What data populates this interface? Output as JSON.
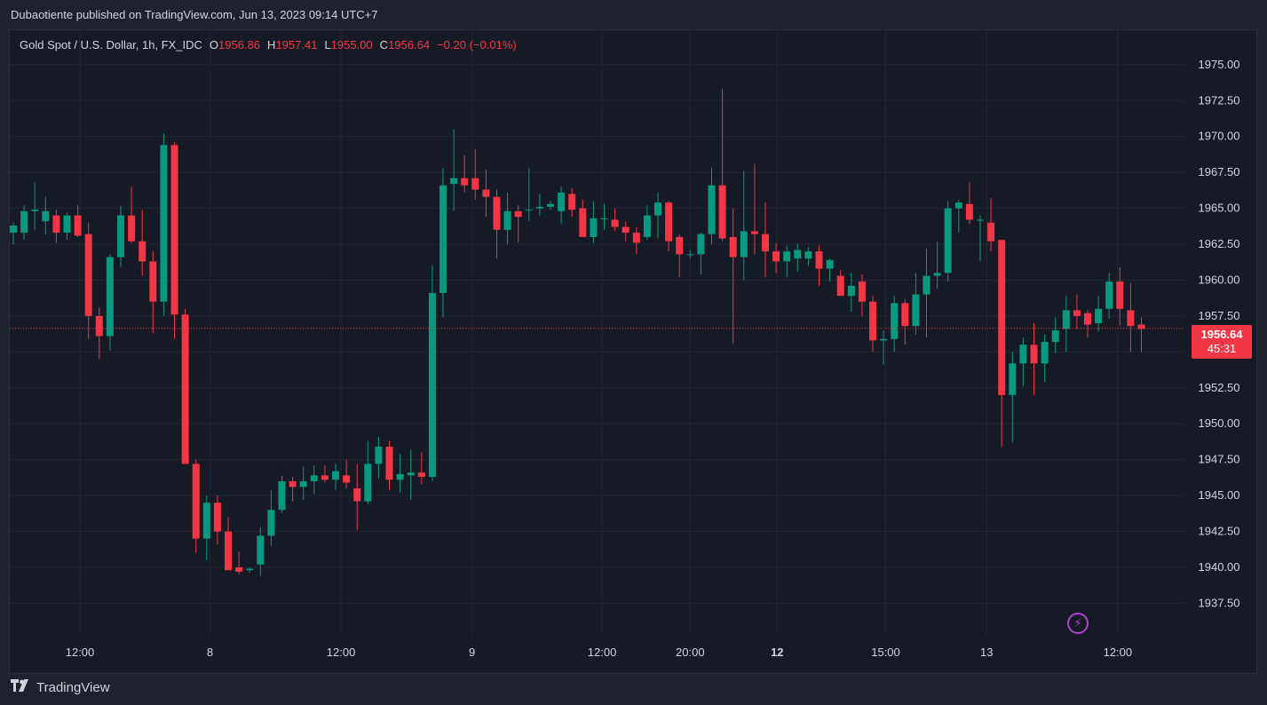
{
  "header": {
    "title": "Dubaotiente published on TradingView.com, Jun 13, 2023 09:14 UTC+7"
  },
  "legend": {
    "symbol": "Gold Spot / U.S. Dollar, 1h, FX_IDC",
    "o_label": "O",
    "o_value": "1956.86",
    "h_label": "H",
    "h_value": "1957.41",
    "l_label": "L",
    "l_value": "1955.00",
    "c_label": "C",
    "c_value": "1956.64",
    "change": "−0.20 (−0.01%)"
  },
  "price_tag": {
    "price": "1956.64",
    "countdown": "45:31"
  },
  "footer": {
    "brand": "TradingView"
  },
  "colors": {
    "up": "#089981",
    "down": "#f23645",
    "background": "#161a25",
    "grid": "#232734",
    "text": "#d1d4dc",
    "last_price_line": "#f23645"
  },
  "icons": {
    "footer_logo": "tradingview-logo-icon",
    "alert": "lightning-bolt-icon"
  },
  "chart_data": {
    "type": "candlestick",
    "title": "Gold Spot / U.S. Dollar, 1h, FX_IDC",
    "ylim": [
      1935.3,
      1977.4
    ],
    "y_ticks": [
      "1975.00",
      "1972.50",
      "1970.00",
      "1967.50",
      "1965.00",
      "1962.50",
      "1960.00",
      "1957.50",
      "1955.00",
      "1952.50",
      "1950.00",
      "1947.50",
      "1945.00",
      "1942.50",
      "1940.00",
      "1937.50"
    ],
    "x_ticks": [
      {
        "label": "12:00",
        "index": 6.2
      },
      {
        "label": "8",
        "index": 18.3
      },
      {
        "label": "12:00",
        "index": 30.5
      },
      {
        "label": "9",
        "index": 42.7
      },
      {
        "label": "12:00",
        "index": 54.8
      },
      {
        "label": "20:00",
        "index": 63.0
      },
      {
        "label": "12",
        "index": 71.1,
        "bold": true
      },
      {
        "label": "15:00",
        "index": 81.2
      },
      {
        "label": "13",
        "index": 90.6
      },
      {
        "label": "12:00",
        "index": 102.8
      }
    ],
    "last_price": 1956.64,
    "grid": true,
    "candles": [
      {
        "o": 1963.3,
        "h": 1964.0,
        "l": 1962.5,
        "c": 1963.8
      },
      {
        "o": 1963.3,
        "h": 1965.2,
        "l": 1962.8,
        "c": 1964.8
      },
      {
        "o": 1964.8,
        "h": 1966.8,
        "l": 1963.5,
        "c": 1964.9
      },
      {
        "o": 1964.1,
        "h": 1965.8,
        "l": 1963.2,
        "c": 1964.8
      },
      {
        "o": 1964.5,
        "h": 1964.9,
        "l": 1962.6,
        "c": 1963.3
      },
      {
        "o": 1963.3,
        "h": 1964.7,
        "l": 1962.8,
        "c": 1964.5
      },
      {
        "o": 1964.5,
        "h": 1965.2,
        "l": 1963.0,
        "c": 1963.1
      },
      {
        "o": 1963.2,
        "h": 1964.0,
        "l": 1955.9,
        "c": 1957.5
      },
      {
        "o": 1957.5,
        "h": 1958.1,
        "l": 1954.5,
        "c": 1956.1
      },
      {
        "o": 1956.1,
        "h": 1961.8,
        "l": 1955.1,
        "c": 1961.6
      },
      {
        "o": 1961.6,
        "h": 1965.2,
        "l": 1960.9,
        "c": 1964.5
      },
      {
        "o": 1964.5,
        "h": 1966.5,
        "l": 1962.6,
        "c": 1962.7
      },
      {
        "o": 1962.7,
        "h": 1964.9,
        "l": 1960.3,
        "c": 1961.3
      },
      {
        "o": 1961.3,
        "h": 1962.0,
        "l": 1956.3,
        "c": 1958.5
      },
      {
        "o": 1958.5,
        "h": 1970.2,
        "l": 1957.5,
        "c": 1969.4
      },
      {
        "o": 1969.4,
        "h": 1969.6,
        "l": 1955.9,
        "c": 1957.6
      },
      {
        "o": 1957.6,
        "h": 1958.0,
        "l": 1947.2,
        "c": 1947.2
      },
      {
        "o": 1947.2,
        "h": 1947.5,
        "l": 1941.0,
        "c": 1942.0
      },
      {
        "o": 1942.0,
        "h": 1945.0,
        "l": 1940.5,
        "c": 1944.5
      },
      {
        "o": 1944.5,
        "h": 1945.0,
        "l": 1941.6,
        "c": 1942.5
      },
      {
        "o": 1942.5,
        "h": 1943.5,
        "l": 1939.8,
        "c": 1939.8
      },
      {
        "o": 1940.0,
        "h": 1941.1,
        "l": 1939.5,
        "c": 1939.7
      },
      {
        "o": 1939.8,
        "h": 1940.0,
        "l": 1939.6,
        "c": 1939.9
      },
      {
        "o": 1940.2,
        "h": 1942.8,
        "l": 1939.4,
        "c": 1942.2
      },
      {
        "o": 1942.2,
        "h": 1945.4,
        "l": 1941.5,
        "c": 1944.0
      },
      {
        "o": 1944.0,
        "h": 1946.4,
        "l": 1943.8,
        "c": 1946.0
      },
      {
        "o": 1946.0,
        "h": 1946.3,
        "l": 1944.6,
        "c": 1945.6
      },
      {
        "o": 1945.6,
        "h": 1947.0,
        "l": 1944.7,
        "c": 1946.0
      },
      {
        "o": 1946.0,
        "h": 1947.1,
        "l": 1945.1,
        "c": 1946.4
      },
      {
        "o": 1946.4,
        "h": 1947.1,
        "l": 1945.9,
        "c": 1946.1
      },
      {
        "o": 1946.1,
        "h": 1947.2,
        "l": 1945.4,
        "c": 1946.7
      },
      {
        "o": 1946.4,
        "h": 1947.5,
        "l": 1945.5,
        "c": 1945.9
      },
      {
        "o": 1945.5,
        "h": 1947.2,
        "l": 1942.6,
        "c": 1944.6
      },
      {
        "o": 1944.6,
        "h": 1948.8,
        "l": 1944.4,
        "c": 1947.2
      },
      {
        "o": 1947.2,
        "h": 1949.1,
        "l": 1946.2,
        "c": 1948.4
      },
      {
        "o": 1948.4,
        "h": 1948.8,
        "l": 1945.4,
        "c": 1946.1
      },
      {
        "o": 1946.1,
        "h": 1947.9,
        "l": 1945.2,
        "c": 1946.5
      },
      {
        "o": 1946.4,
        "h": 1948.2,
        "l": 1944.7,
        "c": 1946.6
      },
      {
        "o": 1946.6,
        "h": 1948.0,
        "l": 1945.8,
        "c": 1946.3
      },
      {
        "o": 1946.3,
        "h": 1961.0,
        "l": 1946.0,
        "c": 1959.1
      },
      {
        "o": 1959.1,
        "h": 1967.8,
        "l": 1957.4,
        "c": 1966.6
      },
      {
        "o": 1966.7,
        "h": 1970.5,
        "l": 1964.8,
        "c": 1967.1
      },
      {
        "o": 1967.1,
        "h": 1968.7,
        "l": 1966.1,
        "c": 1966.6
      },
      {
        "o": 1967.1,
        "h": 1969.1,
        "l": 1965.6,
        "c": 1966.3
      },
      {
        "o": 1966.3,
        "h": 1967.7,
        "l": 1964.4,
        "c": 1965.8
      },
      {
        "o": 1965.8,
        "h": 1966.3,
        "l": 1961.5,
        "c": 1963.5
      },
      {
        "o": 1963.5,
        "h": 1966.1,
        "l": 1962.5,
        "c": 1964.8
      },
      {
        "o": 1964.8,
        "h": 1965.2,
        "l": 1962.6,
        "c": 1964.4
      },
      {
        "o": 1964.9,
        "h": 1967.8,
        "l": 1964.1,
        "c": 1964.9
      },
      {
        "o": 1965.0,
        "h": 1966.0,
        "l": 1964.5,
        "c": 1965.1
      },
      {
        "o": 1965.1,
        "h": 1965.5,
        "l": 1964.9,
        "c": 1965.3
      },
      {
        "o": 1964.8,
        "h": 1966.5,
        "l": 1963.9,
        "c": 1966.1
      },
      {
        "o": 1966.0,
        "h": 1966.4,
        "l": 1964.4,
        "c": 1964.9
      },
      {
        "o": 1965.0,
        "h": 1965.6,
        "l": 1963.2,
        "c": 1963.0
      },
      {
        "o": 1963.0,
        "h": 1965.5,
        "l": 1962.6,
        "c": 1964.3
      },
      {
        "o": 1964.3,
        "h": 1965.3,
        "l": 1963.5,
        "c": 1964.3
      },
      {
        "o": 1964.2,
        "h": 1965.0,
        "l": 1963.4,
        "c": 1963.7
      },
      {
        "o": 1963.7,
        "h": 1964.1,
        "l": 1962.7,
        "c": 1963.3
      },
      {
        "o": 1963.3,
        "h": 1963.7,
        "l": 1961.8,
        "c": 1962.6
      },
      {
        "o": 1963.0,
        "h": 1965.2,
        "l": 1962.8,
        "c": 1964.5
      },
      {
        "o": 1964.5,
        "h": 1966.1,
        "l": 1962.9,
        "c": 1965.4
      },
      {
        "o": 1965.4,
        "h": 1965.5,
        "l": 1962.0,
        "c": 1962.7
      },
      {
        "o": 1963.0,
        "h": 1963.2,
        "l": 1960.2,
        "c": 1961.8
      },
      {
        "o": 1961.8,
        "h": 1962.1,
        "l": 1961.5,
        "c": 1961.8
      },
      {
        "o": 1961.8,
        "h": 1963.3,
        "l": 1960.4,
        "c": 1963.2
      },
      {
        "o": 1963.2,
        "h": 1967.8,
        "l": 1962.5,
        "c": 1966.6
      },
      {
        "o": 1966.6,
        "h": 1973.3,
        "l": 1962.7,
        "c": 1962.9
      },
      {
        "o": 1963.0,
        "h": 1965.0,
        "l": 1955.6,
        "c": 1961.6
      },
      {
        "o": 1961.6,
        "h": 1967.6,
        "l": 1960.0,
        "c": 1963.4
      },
      {
        "o": 1963.4,
        "h": 1968.1,
        "l": 1961.8,
        "c": 1963.2
      },
      {
        "o": 1963.2,
        "h": 1965.4,
        "l": 1960.2,
        "c": 1962.0
      },
      {
        "o": 1962.0,
        "h": 1962.6,
        "l": 1960.5,
        "c": 1961.3
      },
      {
        "o": 1961.3,
        "h": 1962.4,
        "l": 1960.2,
        "c": 1962.0
      },
      {
        "o": 1961.5,
        "h": 1962.5,
        "l": 1960.6,
        "c": 1962.1
      },
      {
        "o": 1961.5,
        "h": 1962.3,
        "l": 1961.0,
        "c": 1962.0
      },
      {
        "o": 1962.0,
        "h": 1962.4,
        "l": 1959.6,
        "c": 1960.8
      },
      {
        "o": 1960.8,
        "h": 1961.5,
        "l": 1959.9,
        "c": 1961.4
      },
      {
        "o": 1960.3,
        "h": 1960.7,
        "l": 1958.9,
        "c": 1958.9
      },
      {
        "o": 1958.9,
        "h": 1960.5,
        "l": 1957.8,
        "c": 1959.6
      },
      {
        "o": 1959.9,
        "h": 1960.4,
        "l": 1957.5,
        "c": 1958.5
      },
      {
        "o": 1958.5,
        "h": 1958.9,
        "l": 1955.0,
        "c": 1955.8
      },
      {
        "o": 1955.8,
        "h": 1956.5,
        "l": 1954.1,
        "c": 1955.9
      },
      {
        "o": 1955.9,
        "h": 1958.9,
        "l": 1955.0,
        "c": 1958.4
      },
      {
        "o": 1958.4,
        "h": 1958.7,
        "l": 1955.5,
        "c": 1956.8
      },
      {
        "o": 1956.8,
        "h": 1960.5,
        "l": 1956.2,
        "c": 1959.0
      },
      {
        "o": 1959.0,
        "h": 1962.2,
        "l": 1956.0,
        "c": 1960.3
      },
      {
        "o": 1960.3,
        "h": 1962.7,
        "l": 1959.4,
        "c": 1960.5
      },
      {
        "o": 1960.5,
        "h": 1965.5,
        "l": 1959.9,
        "c": 1965.0
      },
      {
        "o": 1965.0,
        "h": 1965.6,
        "l": 1963.3,
        "c": 1965.4
      },
      {
        "o": 1965.3,
        "h": 1966.8,
        "l": 1963.9,
        "c": 1964.2
      },
      {
        "o": 1964.2,
        "h": 1964.5,
        "l": 1961.3,
        "c": 1964.2
      },
      {
        "o": 1964.0,
        "h": 1965.7,
        "l": 1962.0,
        "c": 1962.7
      },
      {
        "o": 1962.8,
        "h": 1962.8,
        "l": 1948.4,
        "c": 1952.0
      },
      {
        "o": 1952.0,
        "h": 1955.0,
        "l": 1948.7,
        "c": 1954.2
      },
      {
        "o": 1954.2,
        "h": 1956.0,
        "l": 1952.6,
        "c": 1955.5
      },
      {
        "o": 1955.5,
        "h": 1957.0,
        "l": 1952.0,
        "c": 1954.2
      },
      {
        "o": 1954.2,
        "h": 1956.2,
        "l": 1952.9,
        "c": 1955.7
      },
      {
        "o": 1955.7,
        "h": 1957.4,
        "l": 1954.9,
        "c": 1956.5
      },
      {
        "o": 1956.6,
        "h": 1958.9,
        "l": 1955.0,
        "c": 1957.9
      },
      {
        "o": 1957.9,
        "h": 1959.0,
        "l": 1956.6,
        "c": 1957.5
      },
      {
        "o": 1957.7,
        "h": 1957.9,
        "l": 1956.0,
        "c": 1956.9
      },
      {
        "o": 1957.0,
        "h": 1958.9,
        "l": 1956.4,
        "c": 1958.0
      },
      {
        "o": 1958.0,
        "h": 1960.5,
        "l": 1957.3,
        "c": 1959.9
      },
      {
        "o": 1959.9,
        "h": 1960.9,
        "l": 1956.8,
        "c": 1958.0
      },
      {
        "o": 1957.9,
        "h": 1959.8,
        "l": 1955.0,
        "c": 1956.8
      },
      {
        "o": 1956.9,
        "h": 1957.4,
        "l": 1955.0,
        "c": 1956.6
      }
    ]
  }
}
